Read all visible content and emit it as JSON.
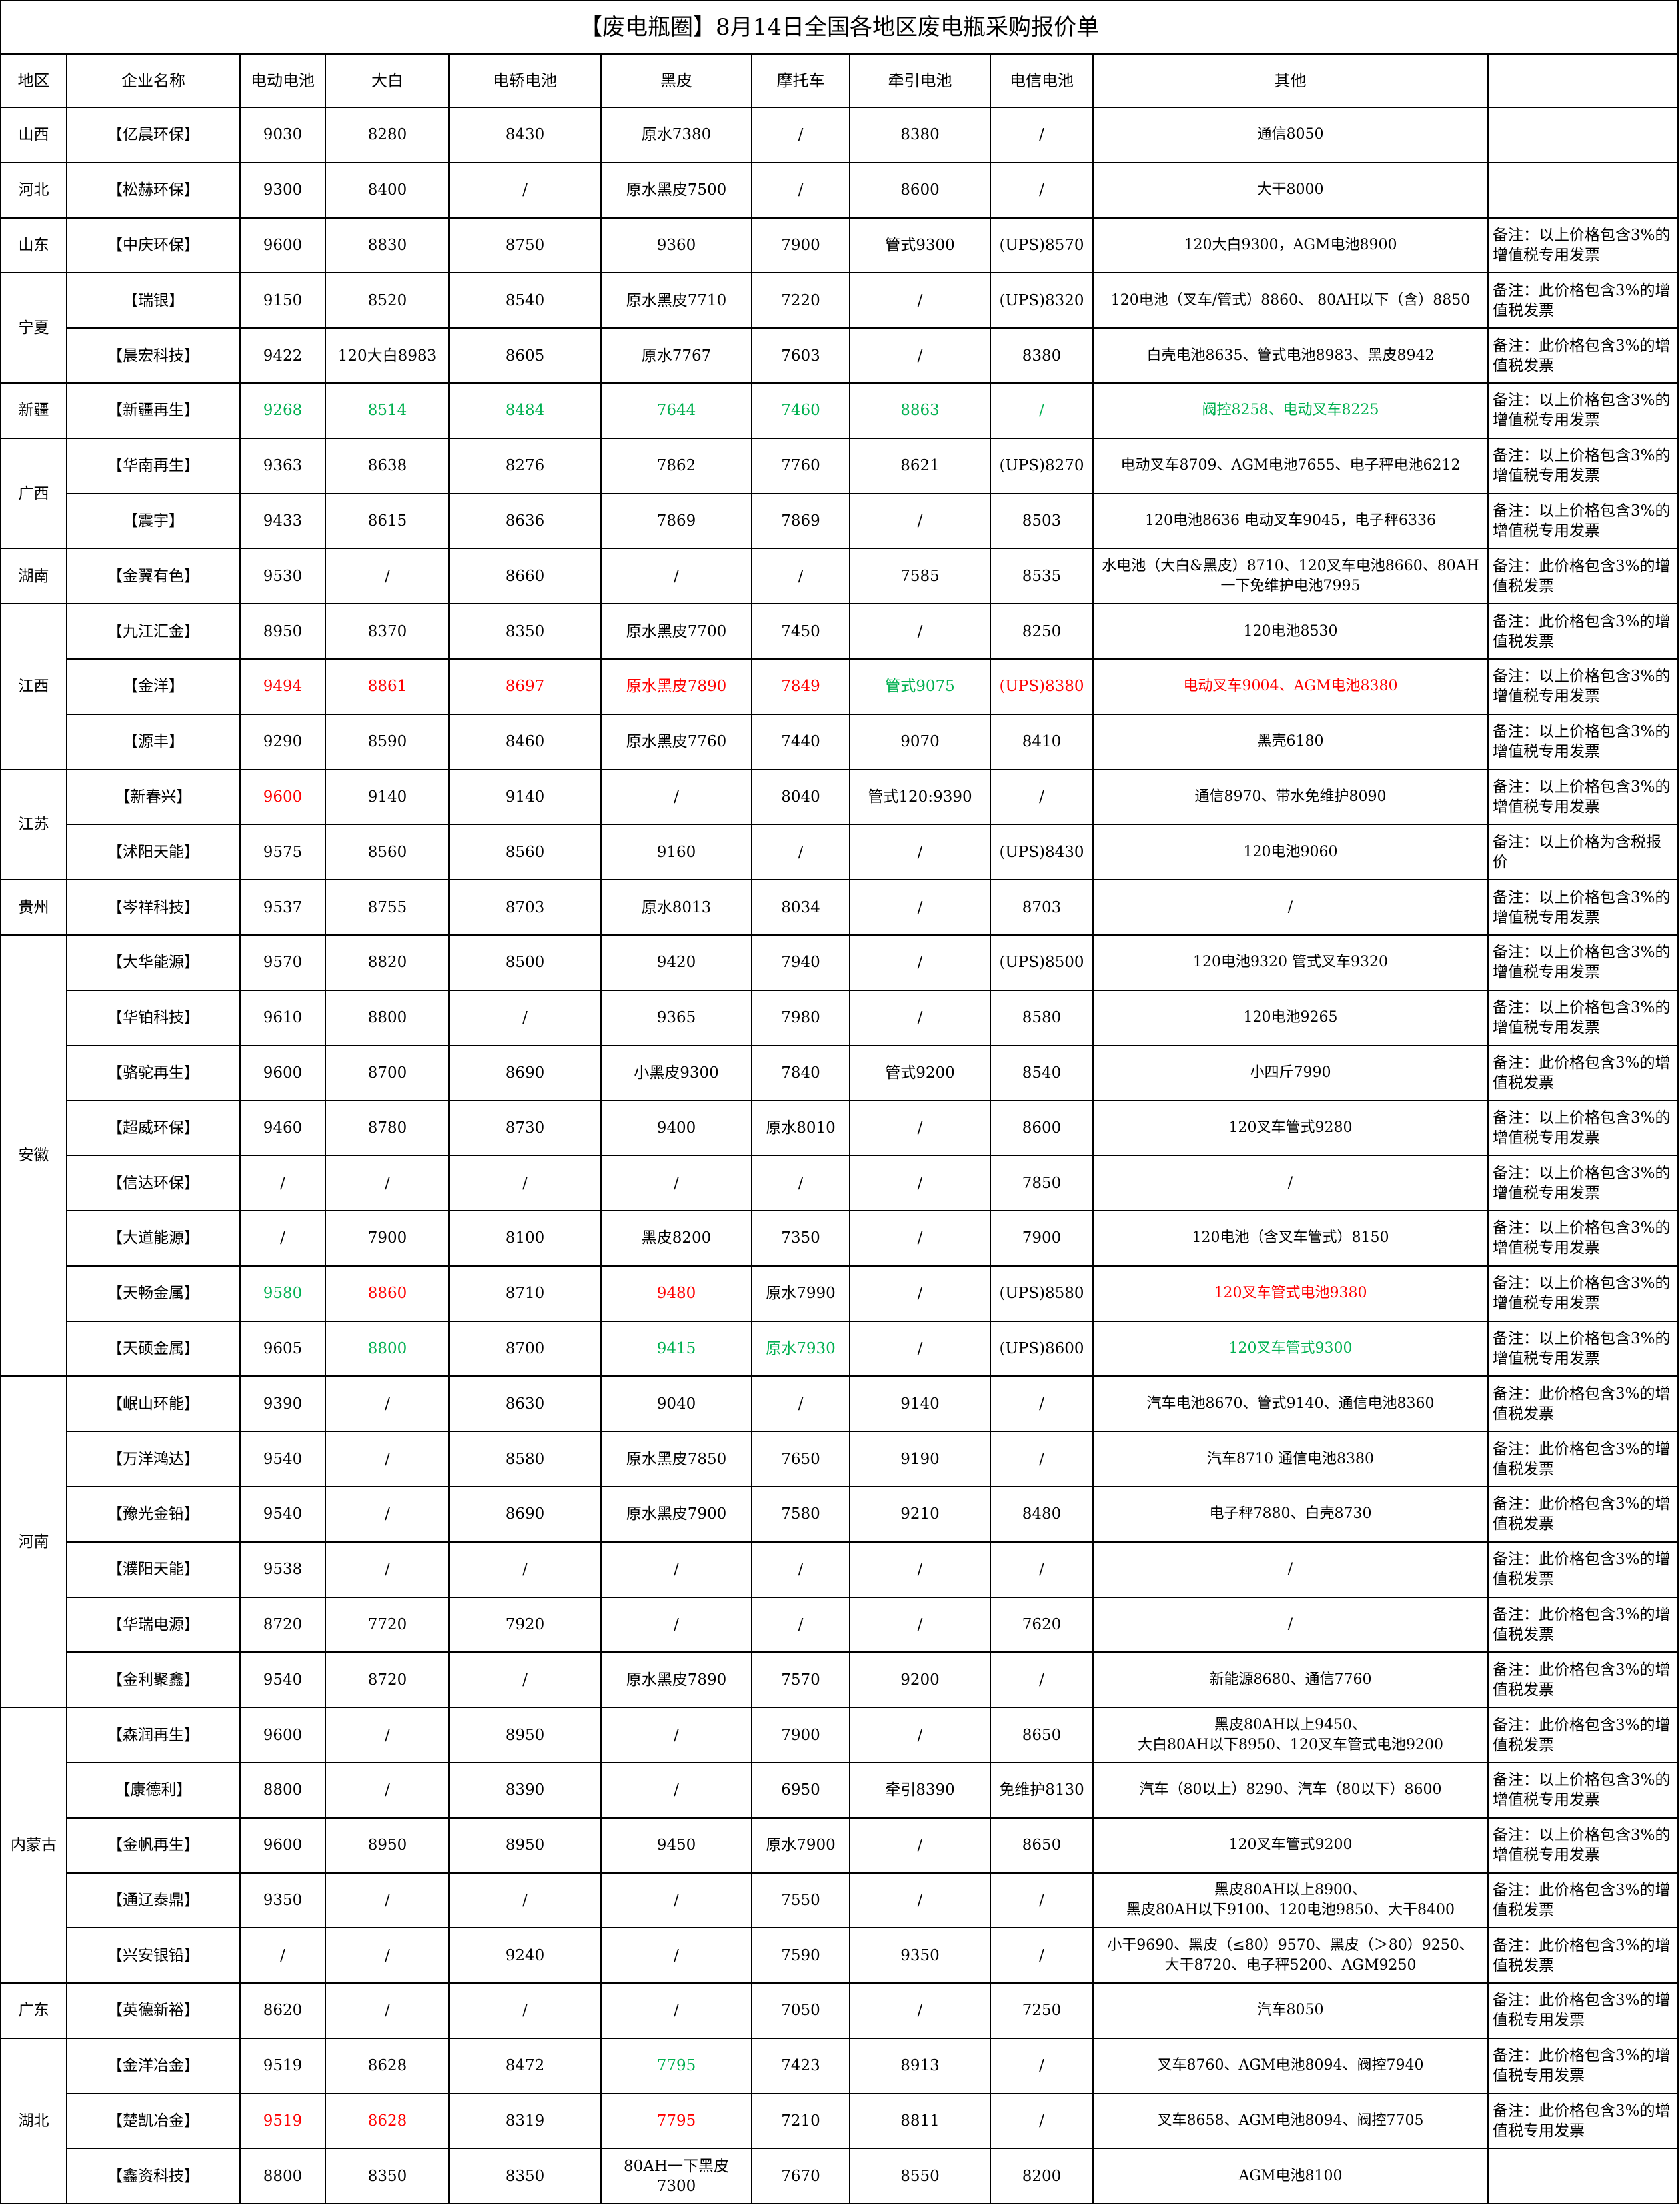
{
  "title": "【废电瓶圈】8月14日全国各地区废电瓶采购报价单",
  "columns": [
    "地区",
    "企业名称",
    "电动电池",
    "大白",
    "电轿电池",
    "黑皮",
    "摩托车",
    "牵引电池",
    "电信电池",
    "其他",
    ""
  ],
  "colors": {
    "red": "#ff0000",
    "green": "#00b050"
  },
  "regions": [
    {
      "name": "山西",
      "companies": [
        {
          "name": "【亿晨环保】",
          "cells": [
            "9030",
            "8280",
            "8430",
            "原水7380",
            "/",
            "8380",
            "/",
            "通信8050"
          ],
          "note": ""
        }
      ]
    },
    {
      "name": "河北",
      "companies": [
        {
          "name": "【松赫环保】",
          "cells": [
            "9300",
            "8400",
            "/",
            "原水黑皮7500",
            "/",
            "8600",
            "/",
            "大干8000"
          ],
          "note": ""
        }
      ]
    },
    {
      "name": "山东",
      "companies": [
        {
          "name": "【中庆环保】",
          "cells": [
            "9600",
            "8830",
            "8750",
            "9360",
            "7900",
            "管式9300",
            "(UPS)8570",
            "120大白9300，AGM电池8900"
          ],
          "note": "备注：以上价格包含3%的增值税专用发票"
        }
      ]
    },
    {
      "name": "宁夏",
      "companies": [
        {
          "name": "【瑞银】",
          "cells": [
            "9150",
            "8520",
            "8540",
            "原水黑皮7710",
            "7220",
            "/",
            "(UPS)8320",
            "120电池（叉车/管式）8860、 80AH以下（含）8850"
          ],
          "note": "备注：此价格包含3%的增值税发票"
        },
        {
          "name": "【晨宏科技】",
          "cells": [
            "9422",
            "120大白8983",
            "8605",
            "原水7767",
            "7603",
            "/",
            "8380",
            "白壳电池8635、管式电池8983、黑皮8942"
          ],
          "note": "备注：此价格包含3%的增值税发票"
        }
      ]
    },
    {
      "name": "新疆",
      "companies": [
        {
          "name": "【新疆再生】",
          "cells": [
            "9268",
            "8514",
            "8484",
            "7644",
            "7460",
            "8863",
            "/",
            "阀控8258、电动叉车8225"
          ],
          "note": "备注：以上价格包含3%的增值税专用发票",
          "green": [
            0,
            1,
            2,
            3,
            4,
            5,
            6,
            7
          ]
        }
      ]
    },
    {
      "name": "广西",
      "companies": [
        {
          "name": "【华南再生】",
          "cells": [
            "9363",
            "8638",
            "8276",
            "7862",
            "7760",
            "8621",
            "(UPS)8270",
            "电动叉车8709、AGM电池7655、电子秤电池6212"
          ],
          "note": "备注：以上价格包含3%的增值税专用发票"
        },
        {
          "name": "【震宇】",
          "cells": [
            "9433",
            "8615",
            "8636",
            "7869",
            "7869",
            "/",
            "8503",
            "120电池8636  电动叉车9045，电子秤6336"
          ],
          "note": "备注：以上价格包含3%的增值税专用发票"
        }
      ]
    },
    {
      "name": "湖南",
      "companies": [
        {
          "name": "【金翼有色】",
          "cells": [
            "9530",
            "/",
            "8660",
            "/",
            "/",
            "7585",
            "8535",
            "水电池（大白&黑皮）8710、120叉车电池8660、80AH一下免维护电池7995"
          ],
          "note": "备注：此价格包含3%的增值税发票"
        }
      ]
    },
    {
      "name": "江西",
      "companies": [
        {
          "name": "【九江汇金】",
          "cells": [
            "8950",
            "8370",
            "8350",
            "原水黑皮7700",
            "7450",
            "/",
            "8250",
            "120电池8530"
          ],
          "note": "备注：此价格包含3%的增值税发票"
        },
        {
          "name": "【金洋】",
          "cells": [
            "9494",
            "8861",
            "8697",
            "原水黑皮7890",
            "7849",
            "管式9075",
            "(UPS)8380",
            "电动叉车9004、AGM电池8380"
          ],
          "note": "备注：以上价格包含3%的增值税专用发票",
          "red": [
            0,
            1,
            2,
            3,
            4,
            6,
            7
          ],
          "green": [
            5
          ]
        },
        {
          "name": "【源丰】",
          "cells": [
            "9290",
            "8590",
            "8460",
            "原水黑皮7760",
            "7440",
            "9070",
            "8410",
            "黑壳6180"
          ],
          "note": "备注：以上价格包含3%的增值税专用发票"
        }
      ]
    },
    {
      "name": "江苏",
      "companies": [
        {
          "name": "【新春兴】",
          "cells": [
            "9600",
            "9140",
            "9140",
            "/",
            "8040",
            "管式120:9390",
            "/",
            "通信8970、带水免维护8090"
          ],
          "note": "备注：以上价格包含3%的增值税专用发票",
          "red": [
            0
          ]
        },
        {
          "name": "【沭阳天能】",
          "cells": [
            "9575",
            "8560",
            "8560",
            "9160",
            "/",
            "/",
            "(UPS)8430",
            "120电池9060"
          ],
          "note": "备注：以上价格为含税报价"
        }
      ]
    },
    {
      "name": "贵州",
      "companies": [
        {
          "name": "【岑祥科技】",
          "cells": [
            "9537",
            "8755",
            "8703",
            "原水8013",
            "8034",
            "/",
            "8703",
            "/"
          ],
          "note": "备注：以上价格包含3%的增值税专用发票"
        }
      ]
    },
    {
      "name": "安徽",
      "companies": [
        {
          "name": "【大华能源】",
          "cells": [
            "9570",
            "8820",
            "8500",
            "9420",
            "7940",
            "/",
            "(UPS)8500",
            "120电池9320  管式叉车9320"
          ],
          "note": "备注：以上价格包含3%的增值税专用发票"
        },
        {
          "name": "【华铂科技】",
          "cells": [
            "9610",
            "8800",
            "/",
            "9365",
            "7980",
            "/",
            "8580",
            "120电池9265"
          ],
          "note": "备注：以上价格包含3%的增值税专用发票"
        },
        {
          "name": "【骆驼再生】",
          "cells": [
            "9600",
            "8700",
            "8690",
            "小黑皮9300",
            "7840",
            "管式9200",
            "8540",
            "小四斤7990"
          ],
          "note": "备注：此价格包含3%的增值税发票"
        },
        {
          "name": "【超威环保】",
          "cells": [
            "9460",
            "8780",
            "8730",
            "9400",
            "原水8010",
            "/",
            "8600",
            "120叉车管式9280"
          ],
          "note": "备注：以上价格包含3%的增值税专用发票"
        },
        {
          "name": "【信达环保】",
          "cells": [
            "/",
            "/",
            "/",
            "/",
            "/",
            "/",
            "7850",
            "/"
          ],
          "note": "备注：以上价格包含3%的增值税专用发票"
        },
        {
          "name": "【大道能源】",
          "cells": [
            "/",
            "7900",
            "8100",
            "黑皮8200",
            "7350",
            "/",
            "7900",
            "120电池（含叉车管式）8150"
          ],
          "note": "备注：以上价格包含3%的增值税专用发票"
        },
        {
          "name": "【天畅金属】",
          "cells": [
            "9580",
            "8860",
            "8710",
            "9480",
            "原水7990",
            "/",
            "(UPS)8580",
            "120叉车管式电池9380"
          ],
          "note": "备注：以上价格包含3%的增值税专用发票",
          "green": [
            0
          ],
          "red": [
            1,
            3,
            7
          ]
        },
        {
          "name": "【天硕金属】",
          "cells": [
            "9605",
            "8800",
            "8700",
            "9415",
            "原水7930",
            "/",
            "(UPS)8600",
            "120叉车管式9300"
          ],
          "note": "备注：以上价格包含3%的增值税专用发票",
          "green": [
            1,
            3,
            4,
            7
          ]
        }
      ]
    },
    {
      "name": "河南",
      "companies": [
        {
          "name": "【岷山环能】",
          "cells": [
            "9390",
            "/",
            "8630",
            "9040",
            "/",
            "9140",
            "/",
            "汽车电池8670、管式9140、通信电池8360"
          ],
          "note": "备注：此价格包含3%的增值税发票"
        },
        {
          "name": "【万洋鸿达】",
          "cells": [
            "9540",
            "/",
            "8580",
            "原水黑皮7850",
            "7650",
            "9190",
            "/",
            "汽车8710  通信电池8380"
          ],
          "note": "备注：此价格包含3%的增值税发票"
        },
        {
          "name": "【豫光金铅】",
          "cells": [
            "9540",
            "/",
            "8690",
            "原水黑皮7900",
            "7580",
            "9210",
            "8480",
            "电子秤7880、白壳8730"
          ],
          "note": "备注：此价格包含3%的增值税发票"
        },
        {
          "name": "【濮阳天能】",
          "cells": [
            "9538",
            "/",
            "/",
            "/",
            "/",
            "/",
            "/",
            "/"
          ],
          "note": "备注：此价格包含3%的增值税发票"
        },
        {
          "name": "【华瑞电源】",
          "cells": [
            "8720",
            "7720",
            "7920",
            "/",
            "/",
            "/",
            "7620",
            "/"
          ],
          "note": "备注：此价格包含3%的增值税发票"
        },
        {
          "name": "【金利聚鑫】",
          "cells": [
            "9540",
            "8720",
            "/",
            "原水黑皮7890",
            "7570",
            "9200",
            "/",
            "新能源8680、通信7760"
          ],
          "note": "备注：此价格包含3%的增值税发票"
        }
      ]
    },
    {
      "name": "内蒙古",
      "companies": [
        {
          "name": "【森润再生】",
          "cells": [
            "9600",
            "/",
            "8950",
            "/",
            "7900",
            "/",
            "8650",
            "黑皮80AH以上9450、\n大白80AH以下8950、120叉车管式电池9200"
          ],
          "note": "备注：此价格包含3%的增值税发票"
        },
        {
          "name": "【康德利】",
          "cells": [
            "8800",
            "/",
            "8390",
            "/",
            "6950",
            "牵引8390",
            "免维护8130",
            "汽车（80以上）8290、汽车（80以下）8600"
          ],
          "note": "备注：以上价格包含3%的增值税专用发票"
        },
        {
          "name": "【金帆再生】",
          "cells": [
            "9600",
            "8950",
            "8950",
            "9450",
            "原水7900",
            "/",
            "8650",
            "120叉车管式9200"
          ],
          "note": "备注：以上价格包含3%的增值税专用发票"
        },
        {
          "name": "【通辽泰鼎】",
          "cells": [
            "9350",
            "/",
            "/",
            "/",
            "7550",
            "/",
            "/",
            "黑皮80AH以上8900、\n黑皮80AH以下9100、120电池9850、大干8400"
          ],
          "note": "备注：此价格包含3%的增值税发票"
        },
        {
          "name": "【兴安银铅】",
          "cells": [
            "/",
            "/",
            "9240",
            "/",
            "7590",
            "9350",
            "/",
            "小干9690、黑皮（≤80）9570、黑皮（＞80）9250、\n大干8720、电子秤5200、AGM9250"
          ],
          "note": "备注：此价格包含3%的增值税发票"
        }
      ]
    },
    {
      "name": "广东",
      "companies": [
        {
          "name": "【英德新裕】",
          "cells": [
            "8620",
            "/",
            "/",
            "/",
            "7050",
            "/",
            "7250",
            "汽车8050"
          ],
          "note": "备注：此价格包含3%的增值税专用发票"
        }
      ]
    },
    {
      "name": "湖北",
      "companies": [
        {
          "name": "【金洋冶金】",
          "cells": [
            "9519",
            "8628",
            "8472",
            "7795",
            "7423",
            "8913",
            "/",
            "叉车8760、AGM电池8094、阀控7940"
          ],
          "note": "备注：此价格包含3%的增值税专用发票",
          "green": [
            3
          ]
        },
        {
          "name": "【楚凯冶金】",
          "cells": [
            "9519",
            "8628",
            "8319",
            "7795",
            "7210",
            "8811",
            "/",
            "叉车8658、AGM电池8094、阀控7705"
          ],
          "note": "备注：此价格包含3%的增值税专用发票",
          "red": [
            0,
            1,
            3
          ]
        },
        {
          "name": "【鑫资科技】",
          "cells": [
            "8800",
            "8350",
            "8350",
            "80AH一下黑皮7300",
            "7670",
            "8550",
            "8200",
            "AGM电池8100"
          ],
          "note": ""
        }
      ]
    }
  ]
}
